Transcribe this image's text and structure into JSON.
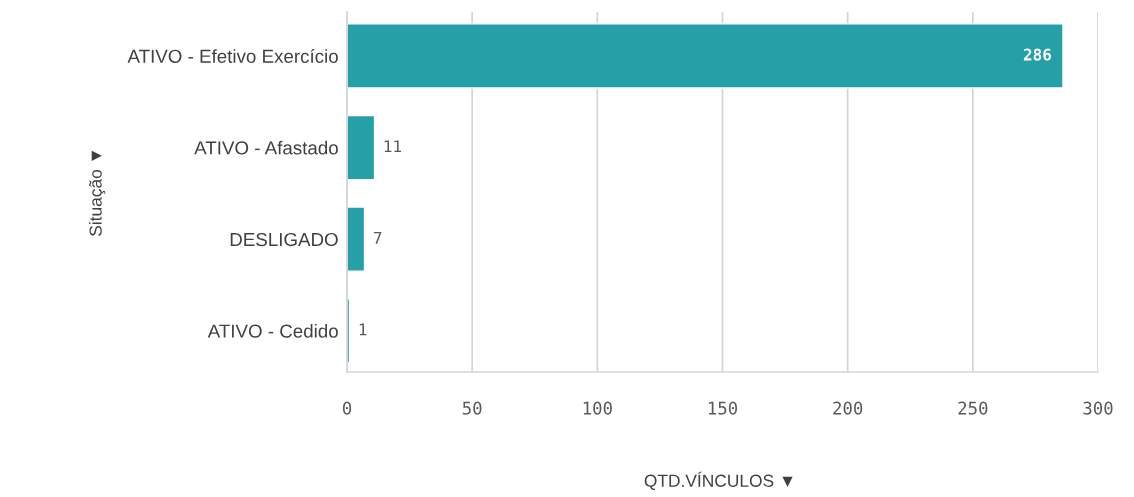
{
  "chart_data": {
    "type": "bar",
    "orientation": "horizontal",
    "categories": [
      "ATIVO - Efetivo Exercício",
      "ATIVO - Afastado",
      "DESLIGADO",
      "ATIVO - Cedido"
    ],
    "values": [
      286,
      11,
      7,
      1
    ],
    "color": "#26a0a7",
    "xlabel": "QTD.VÍNCULOS ▼",
    "ylabel": "Situação ▼",
    "xlim": [
      0,
      300
    ],
    "xticks": [
      0,
      50,
      100,
      150,
      200,
      250,
      300
    ],
    "grid": "x",
    "data_labels": true
  }
}
